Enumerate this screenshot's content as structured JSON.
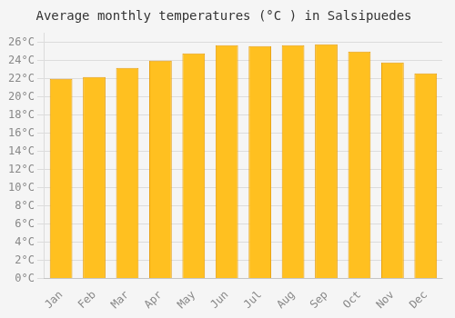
{
  "chart_data": {
    "type": "bar",
    "title": "Average monthly temperatures (°C ) in Salsipuedes",
    "categories": [
      "Jan",
      "Feb",
      "Mar",
      "Apr",
      "May",
      "Jun",
      "Jul",
      "Aug",
      "Sep",
      "Oct",
      "Nov",
      "Dec"
    ],
    "values": [
      22.0,
      22.2,
      23.2,
      24.0,
      24.8,
      25.7,
      25.6,
      25.7,
      25.8,
      25.0,
      23.8,
      22.6
    ],
    "color": "#FFC020",
    "ylim": [
      0,
      27
    ],
    "yticks": [
      {
        "value": 0,
        "label": "0°C"
      },
      {
        "value": 2,
        "label": "2°C"
      },
      {
        "value": 4,
        "label": "4°C"
      },
      {
        "value": 6,
        "label": "6°C"
      },
      {
        "value": 8,
        "label": "8°C"
      },
      {
        "value": 10,
        "label": "10°C"
      },
      {
        "value": 12,
        "label": "12°C"
      },
      {
        "value": 14,
        "label": "14°C"
      },
      {
        "value": 16,
        "label": "16°C"
      },
      {
        "value": 18,
        "label": "18°C"
      },
      {
        "value": 20,
        "label": "20°C"
      },
      {
        "value": 22,
        "label": "22°C"
      },
      {
        "value": 24,
        "label": "24°C"
      },
      {
        "value": 26,
        "label": "26°C"
      }
    ],
    "grid": true
  }
}
